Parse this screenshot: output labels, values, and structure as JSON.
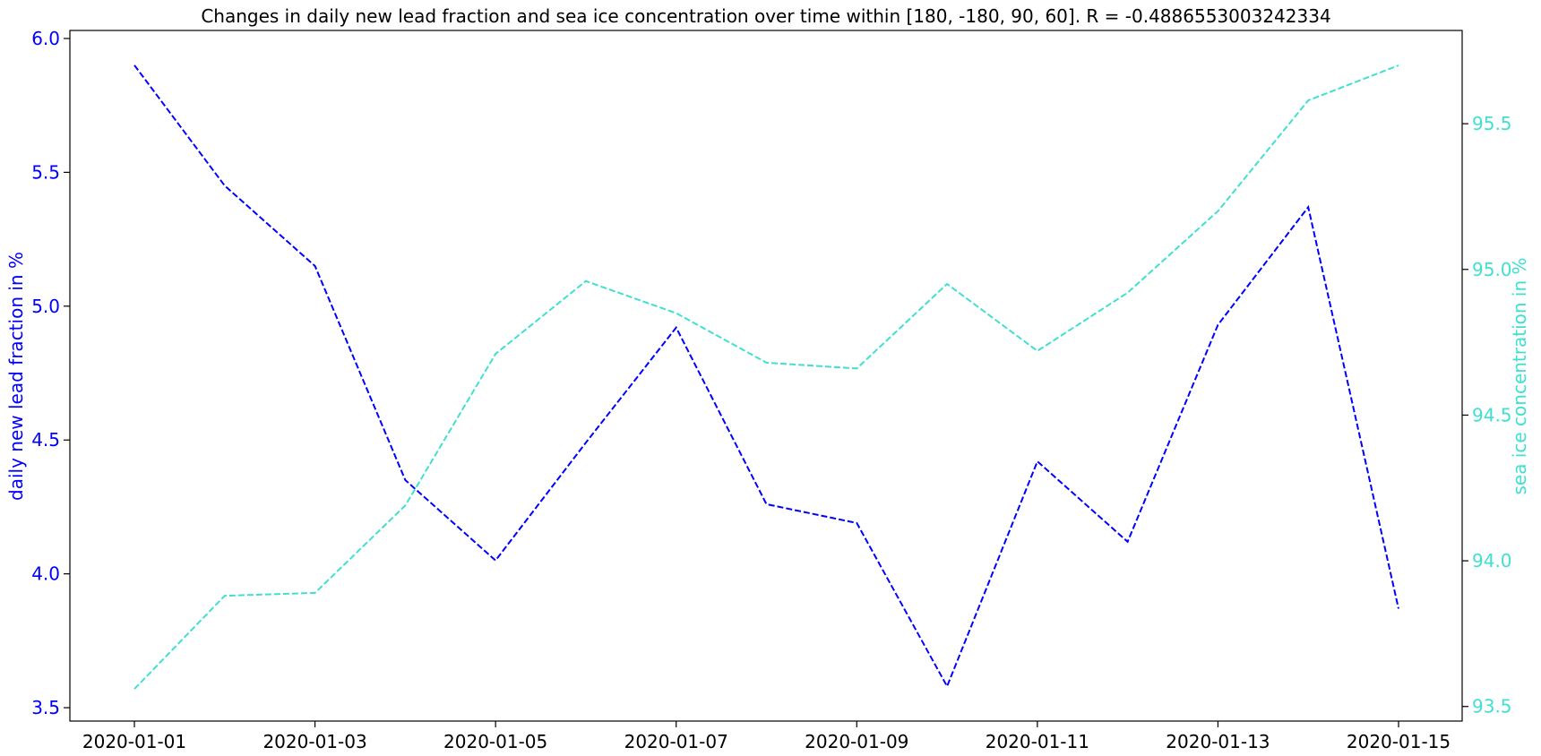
{
  "chart_data": {
    "type": "line",
    "title": "Changes in daily new lead fraction and sea ice concentration over time within [180, -180, 90, 60]. R = -0.4886553003242334",
    "x": [
      "2020-01-01",
      "2020-01-02",
      "2020-01-03",
      "2020-01-04",
      "2020-01-05",
      "2020-01-06",
      "2020-01-07",
      "2020-01-08",
      "2020-01-09",
      "2020-01-10",
      "2020-01-11",
      "2020-01-12",
      "2020-01-13",
      "2020-01-14",
      "2020-01-15"
    ],
    "xticks": [
      "2020-01-01",
      "2020-01-03",
      "2020-01-05",
      "2020-01-07",
      "2020-01-09",
      "2020-01-11",
      "2020-01-13",
      "2020-01-15"
    ],
    "series": [
      {
        "axis": "left",
        "color": "#0000ff",
        "linestyle": "dashed",
        "values": [
          5.9,
          5.45,
          5.15,
          4.35,
          4.05,
          4.49,
          4.92,
          4.26,
          4.19,
          3.58,
          4.42,
          4.12,
          4.93,
          5.37,
          3.87
        ]
      },
      {
        "axis": "right",
        "color": "#40e0d0",
        "linestyle": "dashed",
        "values": [
          93.56,
          93.88,
          93.89,
          94.19,
          94.71,
          94.96,
          94.85,
          94.68,
          94.66,
          94.95,
          94.72,
          94.92,
          95.2,
          95.58,
          95.7
        ]
      }
    ],
    "left_axis": {
      "label": "daily new lead fraction in %",
      "color": "#0000ff",
      "ylim": [
        3.45,
        6.03
      ],
      "ticks": [
        "3.5",
        "4.0",
        "4.5",
        "5.0",
        "5.5",
        "6.0"
      ]
    },
    "right_axis": {
      "label": "sea ice concentration in %",
      "color": "#40e0d0",
      "ylim": [
        93.45,
        95.82
      ],
      "ticks": [
        "93.5",
        "94.0",
        "94.5",
        "95.0",
        "95.5"
      ]
    },
    "grid": false,
    "legend": "none"
  }
}
